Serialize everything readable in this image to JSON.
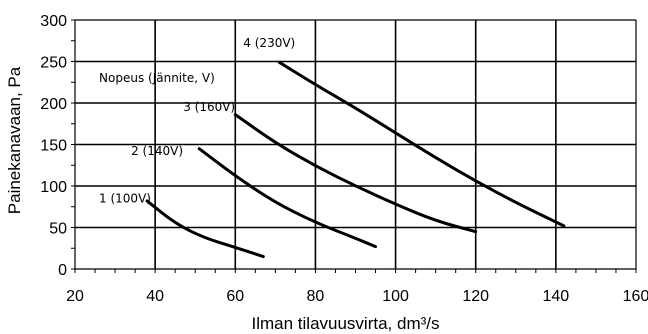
{
  "chart_data": {
    "type": "line",
    "xlabel": "Ilman tilavuusvirta, dm³/s",
    "ylabel": "Painekanavaan, Pa",
    "xlim": [
      20,
      160
    ],
    "ylim": [
      0,
      300
    ],
    "x_ticks": [
      20,
      40,
      60,
      80,
      100,
      120,
      140,
      160
    ],
    "y_ticks": [
      0,
      50,
      100,
      150,
      200,
      250,
      300
    ],
    "x_grid": [
      40,
      60,
      80,
      100,
      120,
      140
    ],
    "y_grid": [
      50,
      100,
      150,
      200,
      250
    ],
    "grid": true,
    "legend": "none",
    "annotations": [
      {
        "text": "Nopeus (Jännite, V)",
        "x": 26,
        "y": 230
      }
    ],
    "series": [
      {
        "name": "1 (100V)",
        "label_at": [
          26,
          85
        ],
        "points": [
          [
            38,
            82
          ],
          [
            45,
            55
          ],
          [
            52,
            38
          ],
          [
            60,
            26
          ],
          [
            67,
            15
          ]
        ]
      },
      {
        "name": "2 (140V)",
        "label_at": [
          34,
          142
        ],
        "points": [
          [
            51,
            145
          ],
          [
            60,
            112
          ],
          [
            70,
            80
          ],
          [
            80,
            56
          ],
          [
            90,
            37
          ],
          [
            95,
            27
          ]
        ]
      },
      {
        "name": "3 (160V)",
        "label_at": [
          47,
          195
        ],
        "points": [
          [
            60,
            186
          ],
          [
            70,
            152
          ],
          [
            80,
            124
          ],
          [
            90,
            100
          ],
          [
            100,
            78
          ],
          [
            110,
            58
          ],
          [
            120,
            45
          ]
        ]
      },
      {
        "name": "4 (230V)",
        "label_at": [
          62,
          272
        ],
        "points": [
          [
            71,
            249
          ],
          [
            80,
            222
          ],
          [
            90,
            194
          ],
          [
            100,
            164
          ],
          [
            110,
            134
          ],
          [
            120,
            106
          ],
          [
            130,
            80
          ],
          [
            142,
            52
          ]
        ]
      }
    ],
    "colors": {
      "line": "#000000",
      "grid": "#000000",
      "background": "#ffffff"
    }
  }
}
